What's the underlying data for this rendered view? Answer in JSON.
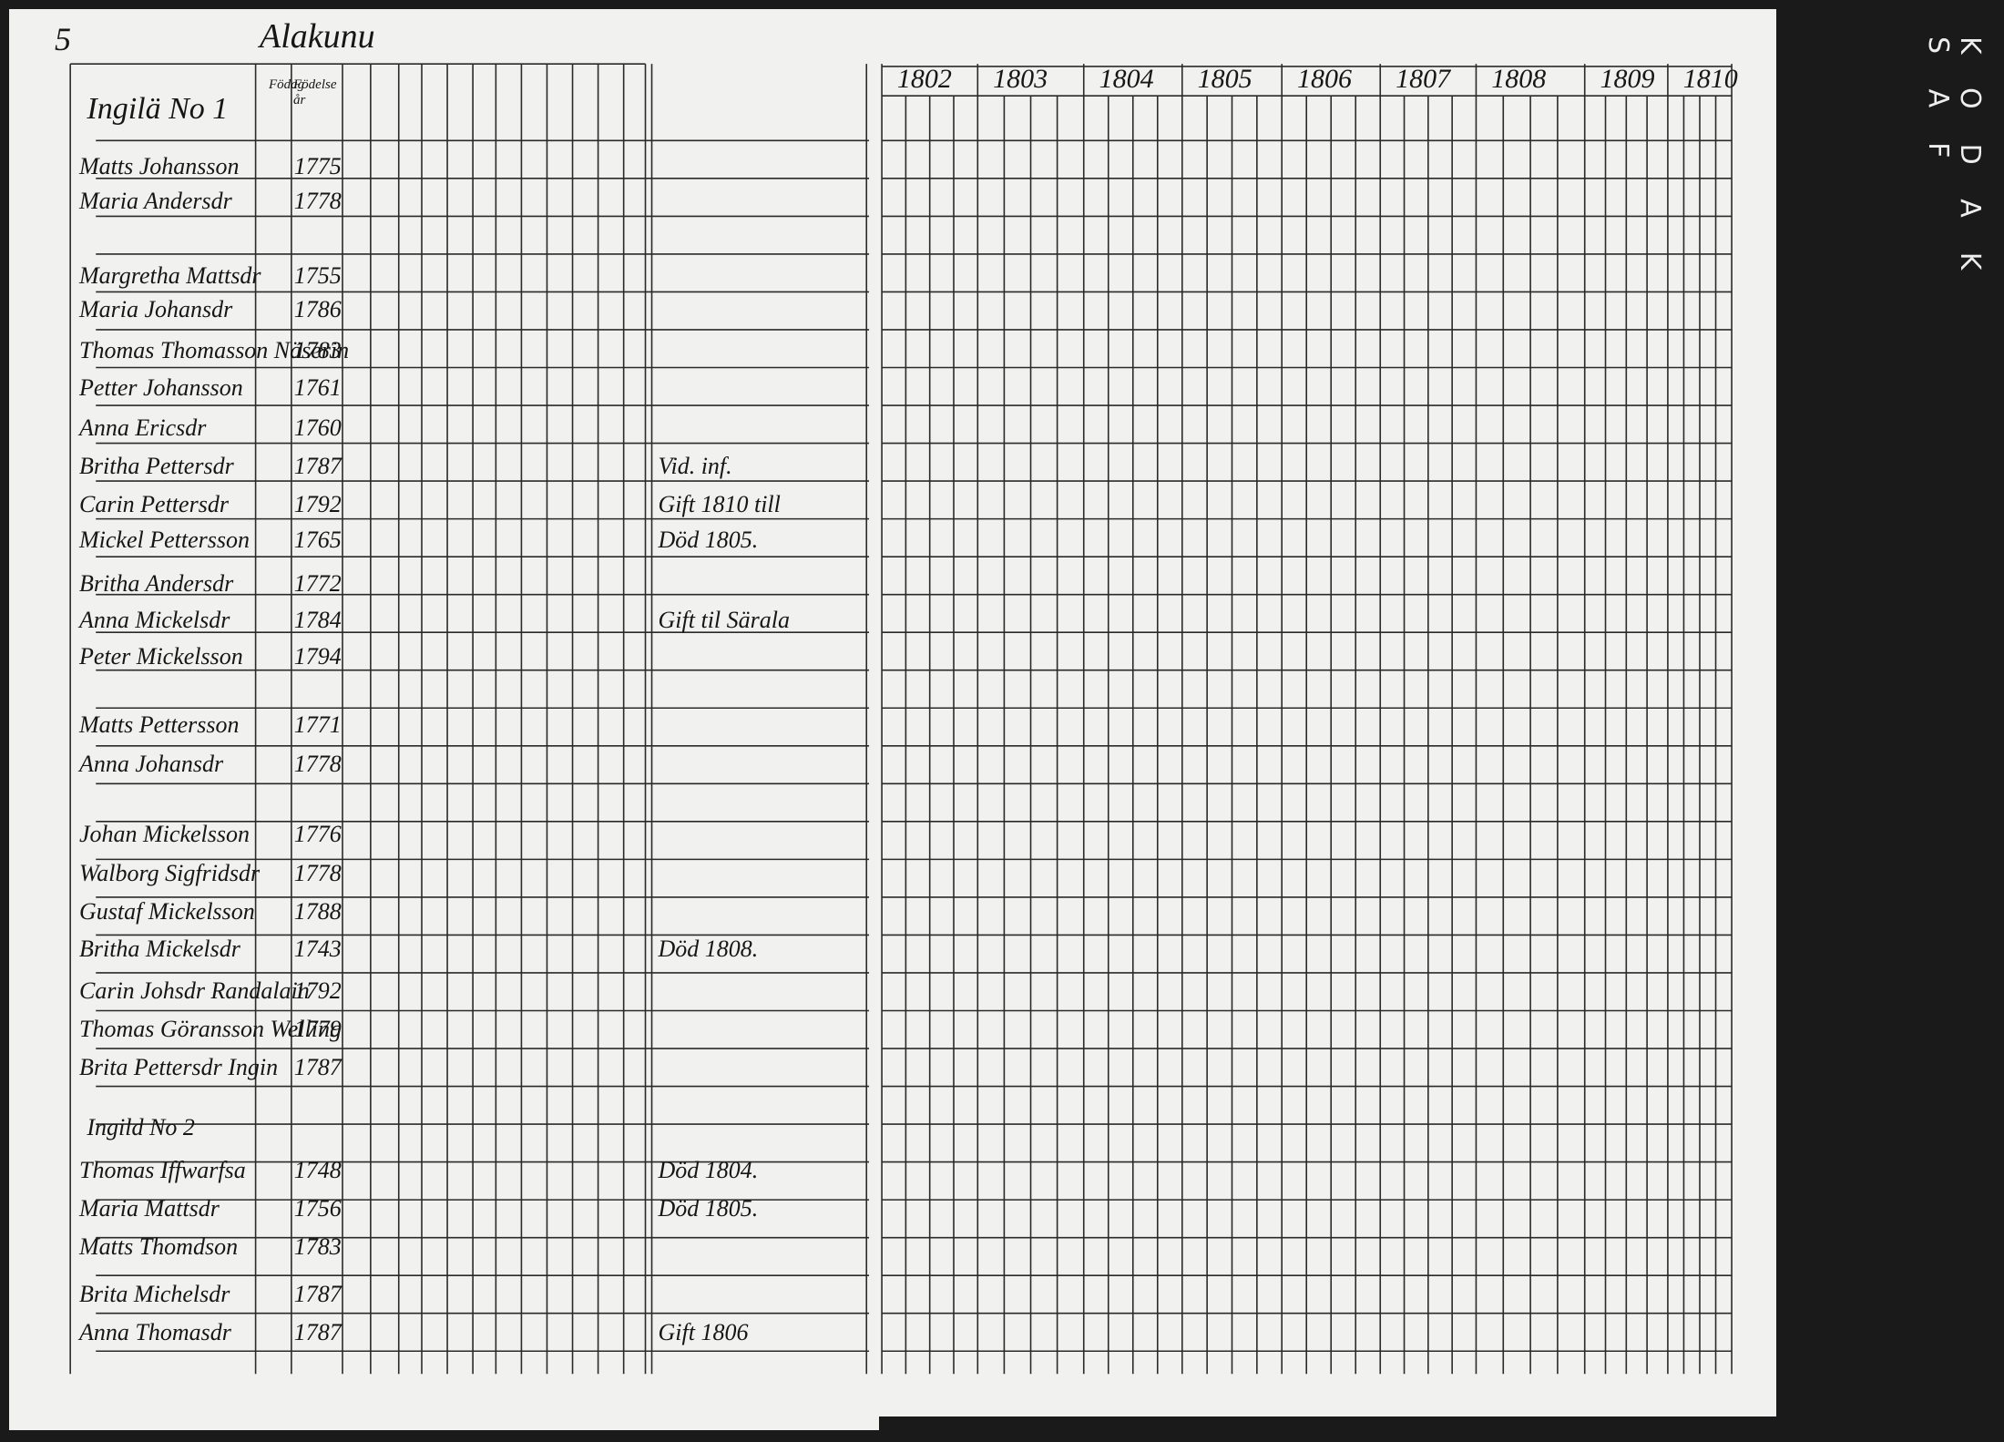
{
  "page_number": "5",
  "village": "Alakunu",
  "years": [
    "1802",
    "1803",
    "1804",
    "1805",
    "1806",
    "1807",
    "1808",
    "1809",
    "1810"
  ],
  "column_headers": [
    "Födag",
    "Födelse år"
  ],
  "sections": [
    {
      "title": "Ingilä No 1",
      "rows": [
        {
          "name": "Matts Johansson",
          "born": "1775"
        },
        {
          "name": "Maria Andersdr",
          "born": "1778"
        },
        {
          "name": "Margretha Mattsdr",
          "born": "1755"
        },
        {
          "name": "Maria Johansdr",
          "born": "1786"
        },
        {
          "name": "Thomas Thomasson Näserin",
          "born": "1783"
        },
        {
          "name": "Petter Johansson",
          "born": "1761"
        },
        {
          "name": "Anna Ericsdr",
          "born": "1760"
        },
        {
          "name": "Britha Pettersdr",
          "born": "1787",
          "note": "Vid. inf."
        },
        {
          "name": "Carin Pettersdr",
          "born": "1792",
          "note": "Gift 1810 till"
        },
        {
          "name": "Mickel Pettersson",
          "born": "1765",
          "note": "Död 1805."
        },
        {
          "name": "Britha Andersdr",
          "born": "1772"
        },
        {
          "name": "Anna Mickelsdr",
          "born": "1784",
          "note": "Gift til Särala"
        },
        {
          "name": "Peter Mickelsson",
          "born": "1794"
        },
        {
          "name": "Matts Pettersson",
          "born": "1771"
        },
        {
          "name": "Anna Johansdr",
          "born": "1778"
        },
        {
          "name": "Johan Mickelsson",
          "born": "1776"
        },
        {
          "name": "Walborg Sigfridsdr",
          "born": "1778"
        },
        {
          "name": "Gustaf Mickelsson",
          "born": "1788"
        },
        {
          "name": "Britha Mickelsdr",
          "born": "1743",
          "note": "Död 1808."
        },
        {
          "name": "Carin Johsdr Randalain",
          "born": "1792"
        },
        {
          "name": "Thomas Göransson Welling",
          "born": "1779"
        },
        {
          "name": "Brita Pettersdr Ingin",
          "born": "1787"
        }
      ]
    },
    {
      "title": "Ingild No 2",
      "rows": [
        {
          "name": "Thomas Iffwarfsa",
          "born": "1748",
          "note": "Död 1804."
        },
        {
          "name": "Maria Mattsdr",
          "born": "1756",
          "note": "Död 1805."
        },
        {
          "name": "Matts Thomdson",
          "born": "1783"
        },
        {
          "name": "Brita Michelsdr",
          "born": "1787"
        },
        {
          "name": "Anna Thomasdr",
          "born": "1787",
          "note": "Gift 1806"
        }
      ]
    }
  ],
  "film_edge": "KODAK SAF"
}
